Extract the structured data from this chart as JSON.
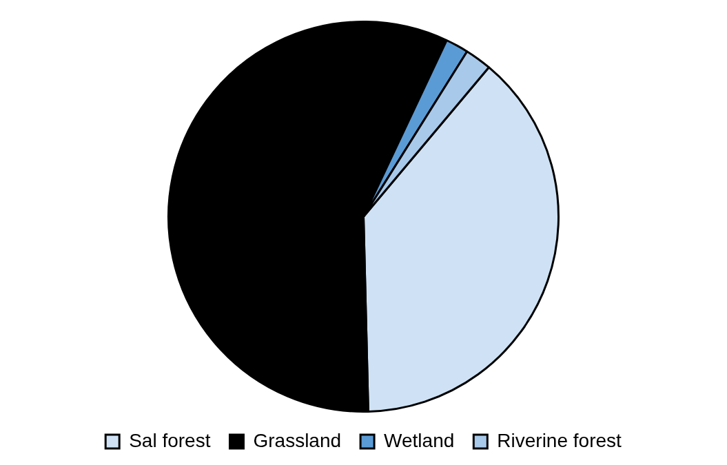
{
  "chart_data": {
    "type": "pie",
    "categories": [
      "Sal forest",
      "Grassland",
      "Wetland",
      "Riverine forest"
    ],
    "values": [
      38.5,
      57.4,
      1.9,
      2.2
    ],
    "colors": [
      "#cfe2f5",
      "#000000",
      "#5b9bd5",
      "#a9c9ea"
    ],
    "legend": "bottom"
  }
}
